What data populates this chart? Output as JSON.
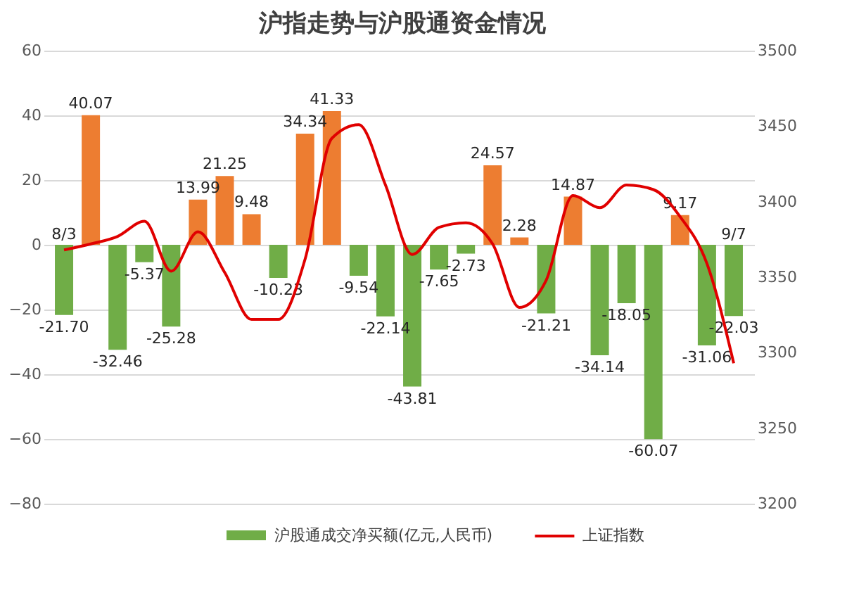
{
  "chart_data": {
    "type": "bar",
    "title": "沪指走势与沪股通资金情况",
    "categories": [
      "8/3",
      null,
      null,
      null,
      null,
      null,
      null,
      null,
      null,
      null,
      null,
      null,
      null,
      null,
      null,
      null,
      null,
      null,
      null,
      null,
      null,
      null,
      null,
      null,
      null,
      "9/7"
    ],
    "series": [
      {
        "name": "沪股通成交净买额(亿元,人民币)",
        "color": "#70ad47",
        "colors": [
          "#70ad47",
          "#ed7d31",
          "#70ad47",
          "#70ad47",
          "#70ad47",
          "#ed7d31",
          "#ed7d31",
          "#ed7d31",
          "#70ad47",
          "#ed7d31",
          "#ed7d31",
          "#70ad47",
          "#70ad47",
          "#70ad47",
          "#70ad47",
          "#70ad47",
          "#ed7d31",
          "#ed7d31",
          "#70ad47",
          "#ed7d31",
          "#70ad47",
          "#70ad47",
          "#70ad47",
          "#ed7d31",
          "#70ad47",
          "#70ad47"
        ],
        "values": [
          -21.7,
          40.07,
          -32.46,
          -5.37,
          -25.28,
          13.99,
          21.25,
          9.48,
          -10.23,
          34.34,
          41.33,
          -9.54,
          -22.14,
          -43.81,
          -7.65,
          -2.73,
          24.57,
          2.28,
          -21.21,
          14.87,
          -34.14,
          -18.05,
          -60.07,
          9.17,
          -31.06,
          -22.03
        ],
        "value_labels": [
          "-21.70",
          "40.07",
          "-32.46",
          "-5.37",
          "-25.28",
          "13.99",
          "21.25",
          "9.48",
          "-10.23",
          "34.34",
          "41.33",
          "-9.54",
          "-22.14",
          "-43.81",
          "-7.65",
          "-2.73",
          "24.57",
          "2.28",
          "-21.21",
          "14.87",
          "-34.14",
          "-18.05",
          "-60.07",
          "9.17",
          "-31.06",
          "-22.03"
        ]
      },
      {
        "name": "上证指数",
        "type": "line",
        "axis": "y2",
        "color": "#e00000",
        "values": [
          3368,
          3372,
          3377,
          3387,
          3354,
          3380,
          3353,
          3322,
          3322,
          3362,
          3442,
          3451,
          3411,
          3365,
          3383,
          3386,
          3372,
          3330,
          3348,
          3404,
          3396,
          3411,
          3408,
          3390,
          3359,
          3293
        ]
      }
    ],
    "ylim": [
      -80,
      60
    ],
    "yticks": [
      -80,
      -60,
      -40,
      -20,
      0,
      20,
      40,
      60
    ],
    "y2lim": [
      3200,
      3500
    ],
    "y2ticks": [
      3200,
      3250,
      3300,
      3350,
      3400,
      3450,
      3500
    ],
    "grid": "y",
    "legend": "bottom",
    "line_style": "solid",
    "marker": "none"
  }
}
